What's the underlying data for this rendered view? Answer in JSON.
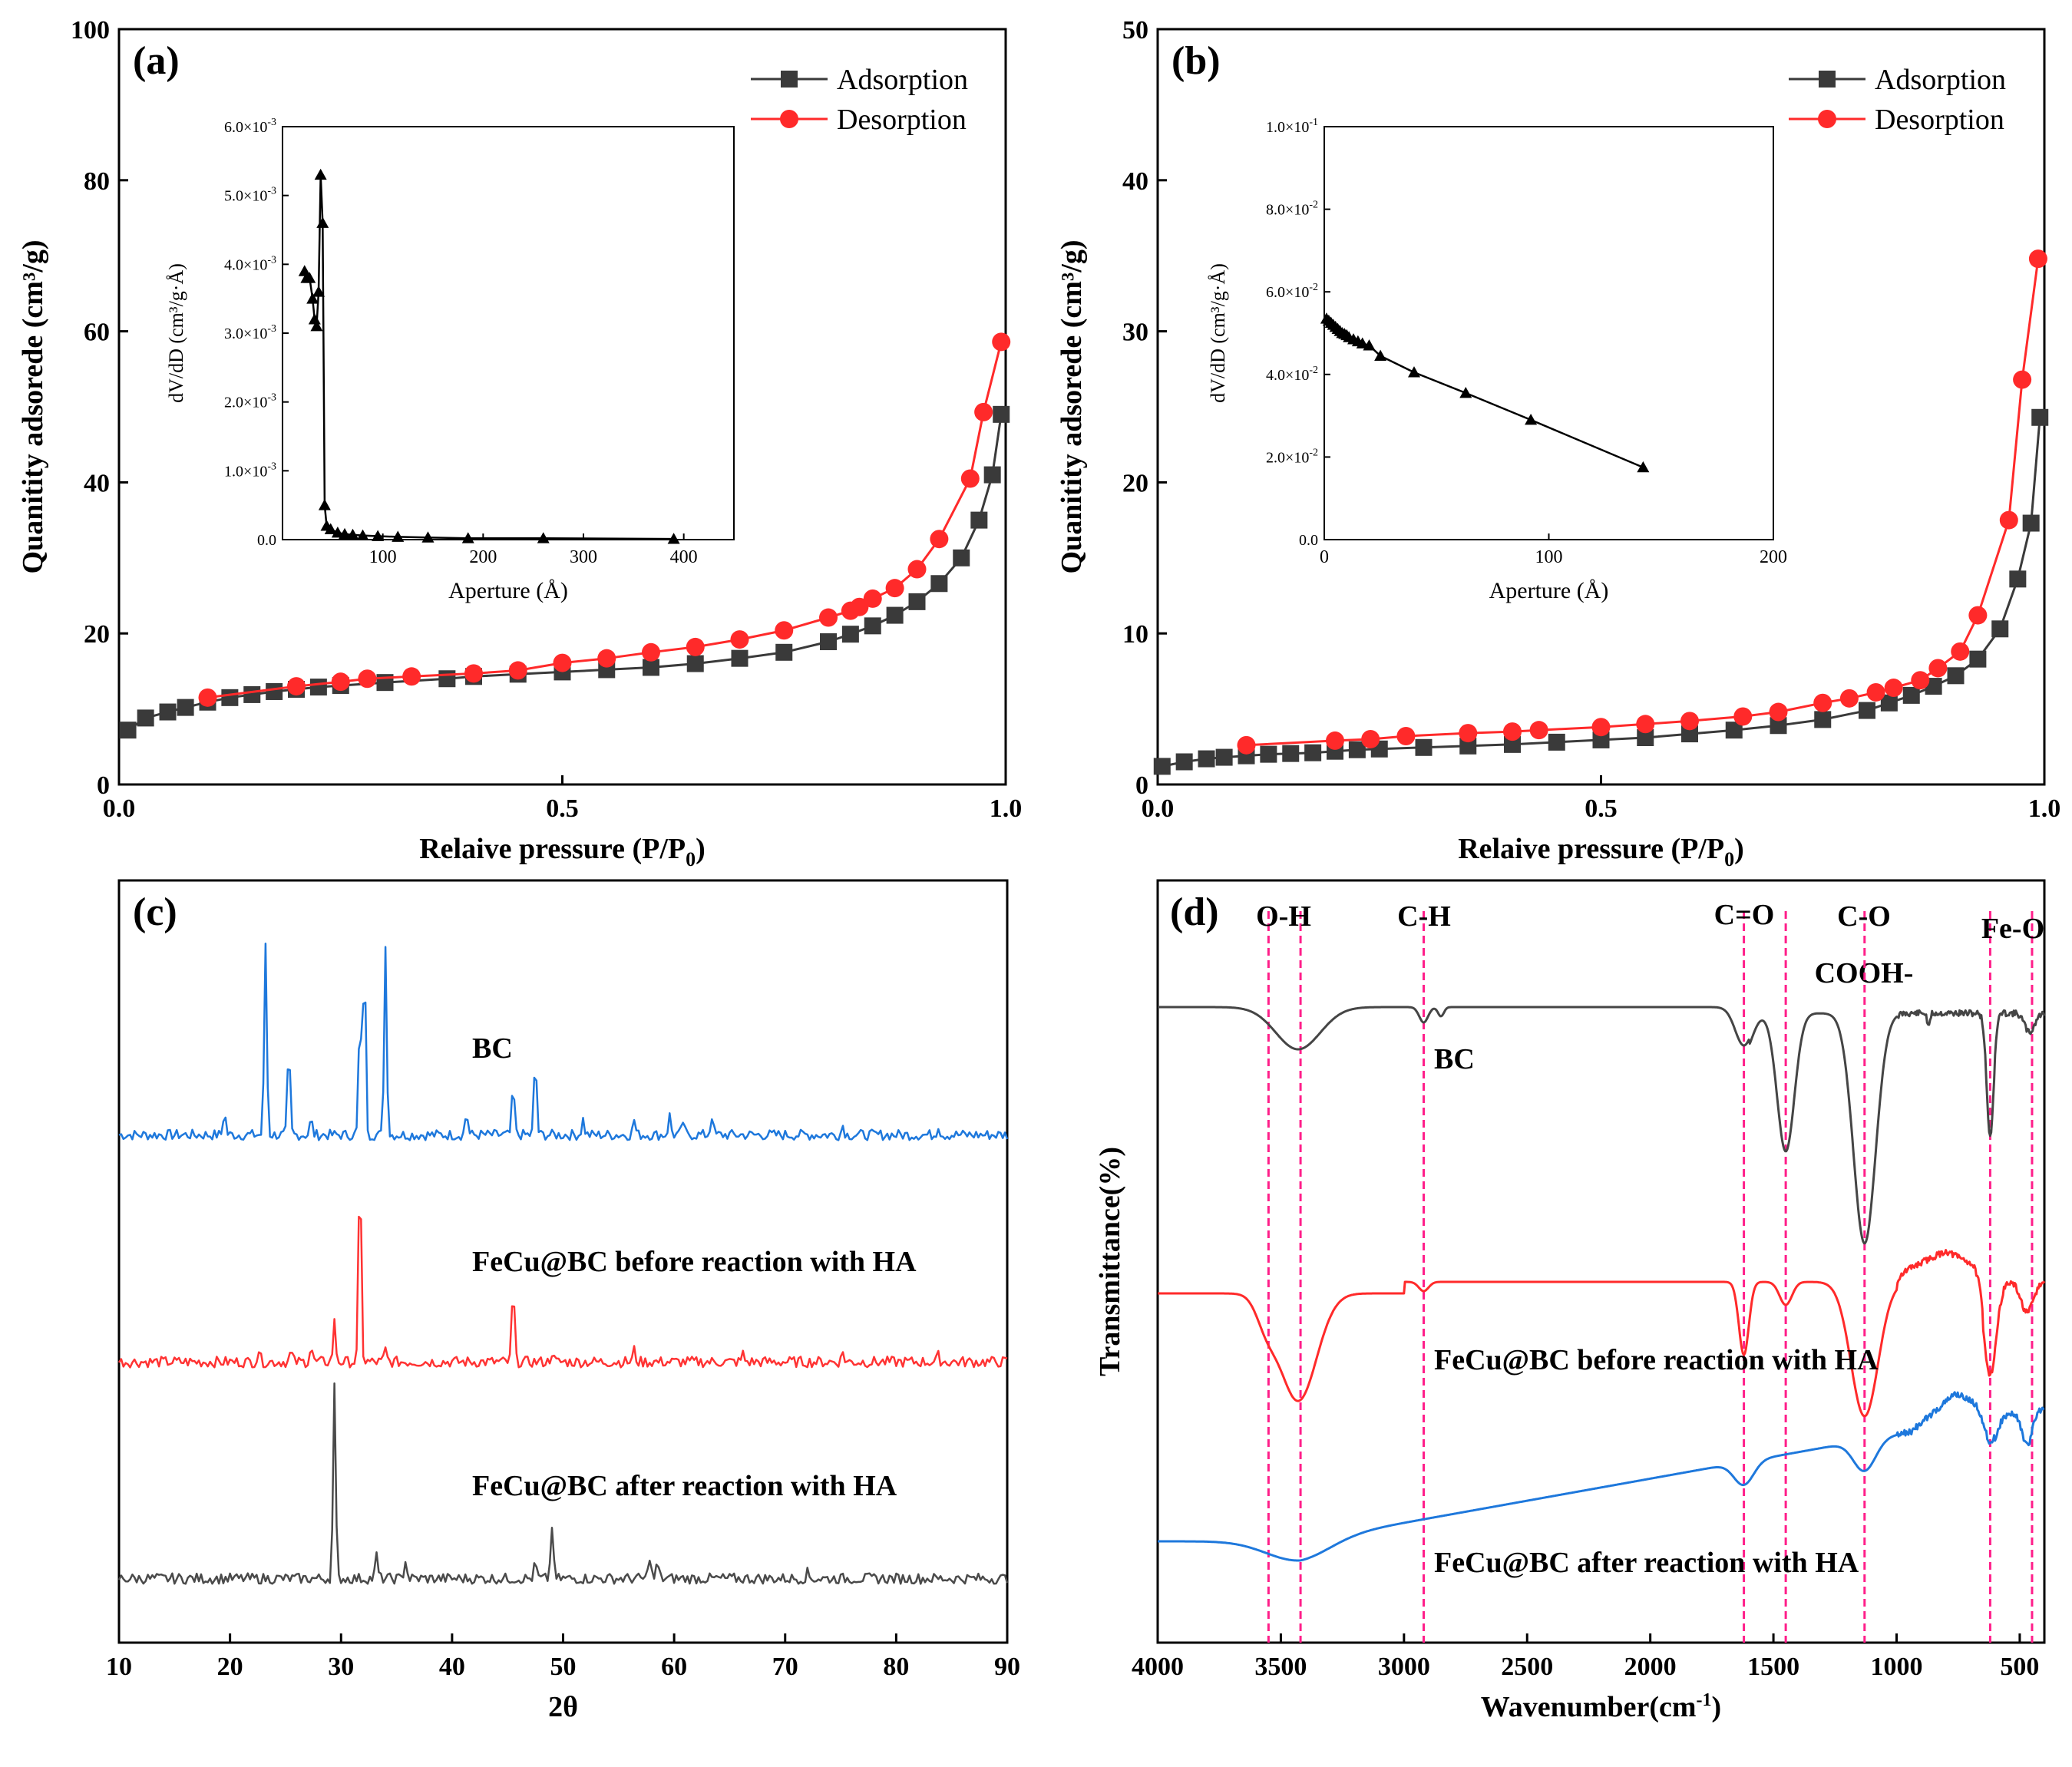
{
  "chart_data": [
    {
      "type": "line",
      "panel_label": "(a)",
      "xlabel": "Relaive pressure (P/P",
      "xlabel_sub": "0",
      "xlabel_close": ")",
      "ylabel": "Quanitity adsorede (cm³/g)",
      "xlim": [
        0,
        1.0
      ],
      "ylim": [
        0,
        100
      ],
      "xticks": [
        "0.0",
        "0.5",
        "1.0"
      ],
      "yticks": [
        "0",
        "20",
        "40",
        "60",
        "80",
        "100"
      ],
      "legend_position": "top-right",
      "series": [
        {
          "name": "Adsorption",
          "marker": "square",
          "color": "#3a3a3a",
          "x": [
            0.01,
            0.03,
            0.055,
            0.075,
            0.1,
            0.125,
            0.15,
            0.175,
            0.2,
            0.225,
            0.25,
            0.3,
            0.37,
            0.4,
            0.45,
            0.5,
            0.55,
            0.6,
            0.65,
            0.7,
            0.75,
            0.8,
            0.825,
            0.85,
            0.875,
            0.9,
            0.925,
            0.95,
            0.97,
            0.985,
            0.995
          ],
          "y": [
            7.2,
            8.8,
            9.6,
            10.2,
            10.9,
            11.5,
            11.9,
            12.3,
            12.6,
            12.9,
            13.1,
            13.5,
            14.0,
            14.3,
            14.6,
            14.9,
            15.2,
            15.5,
            16.0,
            16.7,
            17.5,
            18.9,
            19.9,
            21.0,
            22.4,
            24.2,
            26.6,
            30.0,
            35.0,
            41.0,
            49.0
          ]
        },
        {
          "name": "Desorption",
          "marker": "circle",
          "color": "#ff2a2a",
          "x": [
            0.1,
            0.2,
            0.25,
            0.28,
            0.33,
            0.4,
            0.45,
            0.5,
            0.55,
            0.6,
            0.65,
            0.7,
            0.75,
            0.8,
            0.825,
            0.835,
            0.85,
            0.875,
            0.9,
            0.925,
            0.96,
            0.975,
            0.995
          ],
          "y": [
            11.5,
            13.0,
            13.6,
            14.0,
            14.3,
            14.7,
            15.1,
            16.1,
            16.7,
            17.5,
            18.2,
            19.2,
            20.4,
            22.1,
            23.0,
            23.5,
            24.6,
            26.0,
            28.5,
            32.5,
            40.5,
            49.3,
            58.6
          ]
        }
      ],
      "inset": {
        "xlabel": "Aperture (Å)",
        "ylabel": "dV/dD  (cm³/g·Å)",
        "xlim": [
          0,
          450
        ],
        "ylim": [
          0,
          0.006
        ],
        "xticks": [
          "100",
          "200",
          "300",
          "400"
        ],
        "yticks_mantissa": [
          "0.0",
          "1.0×10",
          "2.0×10",
          "3.0×10",
          "4.0×10",
          "5.0×10",
          "6.0×10"
        ],
        "ytick_exponent": "-3",
        "series": {
          "name": "dV/dD",
          "marker": "triangle",
          "x": [
            22,
            24,
            27,
            30,
            32,
            34,
            36,
            38,
            40,
            42,
            44,
            48,
            55,
            62,
            70,
            80,
            95,
            115,
            145,
            185,
            260,
            390
          ],
          "y": [
            0.0039,
            0.0038,
            0.0038,
            0.0035,
            0.0032,
            0.0031,
            0.0036,
            0.0053,
            0.0046,
            0.0005,
            0.0002,
            0.00015,
            0.0001,
            8e-05,
            7e-05,
            6e-05,
            5e-05,
            4e-05,
            3e-05,
            2e-05,
            2e-05,
            1e-05
          ]
        }
      }
    },
    {
      "type": "line",
      "panel_label": "(b)",
      "xlabel": "Relaive pressure (P/P",
      "xlabel_sub": "0",
      "xlabel_close": ")",
      "ylabel": "Quanitity adsorede (cm³/g)",
      "xlim": [
        0,
        1.0
      ],
      "ylim": [
        0,
        50
      ],
      "xticks": [
        "0.0",
        "0.5",
        "1.0"
      ],
      "yticks": [
        "0",
        "10",
        "20",
        "30",
        "40",
        "50"
      ],
      "legend_position": "top-right",
      "series": [
        {
          "name": "Adsorption",
          "marker": "square",
          "color": "#3a3a3a",
          "x": [
            0.005,
            0.03,
            0.055,
            0.075,
            0.1,
            0.125,
            0.15,
            0.175,
            0.2,
            0.225,
            0.25,
            0.3,
            0.35,
            0.4,
            0.45,
            0.5,
            0.55,
            0.6,
            0.65,
            0.7,
            0.75,
            0.8,
            0.825,
            0.85,
            0.875,
            0.9,
            0.925,
            0.95,
            0.97,
            0.985,
            0.995
          ],
          "y": [
            1.2,
            1.5,
            1.7,
            1.8,
            1.9,
            2.0,
            2.05,
            2.1,
            2.2,
            2.3,
            2.35,
            2.45,
            2.55,
            2.65,
            2.8,
            2.95,
            3.1,
            3.35,
            3.6,
            3.9,
            4.3,
            4.9,
            5.4,
            5.9,
            6.5,
            7.2,
            8.3,
            10.3,
            13.6,
            17.3,
            24.3
          ]
        },
        {
          "name": "Desorption",
          "marker": "circle",
          "color": "#ff2a2a",
          "x": [
            0.1,
            0.2,
            0.24,
            0.28,
            0.35,
            0.4,
            0.43,
            0.5,
            0.55,
            0.6,
            0.66,
            0.7,
            0.75,
            0.78,
            0.81,
            0.83,
            0.86,
            0.88,
            0.905,
            0.925,
            0.96,
            0.975,
            0.993
          ],
          "y": [
            2.6,
            2.9,
            3.0,
            3.2,
            3.4,
            3.5,
            3.6,
            3.8,
            4.0,
            4.2,
            4.5,
            4.8,
            5.4,
            5.7,
            6.1,
            6.4,
            6.9,
            7.7,
            8.8,
            11.2,
            17.5,
            26.8,
            34.8
          ]
        }
      ],
      "inset": {
        "xlabel": "Aperture (Å)",
        "ylabel": "dV/dD  (cm³/g·Å)",
        "xlim": [
          0,
          200
        ],
        "ylim": [
          0,
          0.1
        ],
        "xticks": [
          "0",
          "100",
          "200"
        ],
        "yticks_mantissa": [
          "0.0",
          "2.0×10",
          "4.0×10",
          "6.0×10",
          "8.0×10",
          "1.0×10"
        ],
        "ytick_exponents": [
          "",
          "-2",
          "-2",
          "-2",
          "-2",
          "-1"
        ],
        "series": {
          "name": "dV/dD",
          "marker": "triangle",
          "x": [
            1,
            2,
            3,
            4,
            5,
            6,
            7,
            8,
            9,
            10,
            11,
            13,
            15,
            17,
            20,
            25,
            40,
            63,
            92,
            142
          ],
          "y": [
            0.0535,
            0.053,
            0.0525,
            0.052,
            0.0515,
            0.051,
            0.0505,
            0.05,
            0.0498,
            0.0495,
            0.049,
            0.0485,
            0.048,
            0.0475,
            0.047,
            0.0445,
            0.0405,
            0.0355,
            0.029,
            0.0175
          ]
        }
      }
    },
    {
      "type": "line",
      "panel_label": "(c)",
      "xlabel": "2θ",
      "xlim": [
        10,
        90
      ],
      "xticks": [
        "10",
        "20",
        "30",
        "40",
        "50",
        "60",
        "70",
        "80",
        "90"
      ],
      "series": [
        {
          "name": "BC",
          "color": "#1e78dc",
          "peaks": [
            [
              19.5,
              0.12
            ],
            [
              23.2,
              1.0
            ],
            [
              25.3,
              0.45
            ],
            [
              27.3,
              0.08
            ],
            [
              31.7,
              0.62
            ],
            [
              32.1,
              0.95
            ],
            [
              34.0,
              0.98
            ],
            [
              41.3,
              0.12
            ],
            [
              45.5,
              0.25
            ],
            [
              47.5,
              0.4
            ],
            [
              51.8,
              0.08
            ],
            [
              56.4,
              0.08
            ],
            [
              59.6,
              0.1
            ],
            [
              60.8,
              0.07
            ],
            [
              63.4,
              0.1
            ],
            [
              75.2,
              0.05
            ],
            [
              83.8,
              0.05
            ]
          ]
        },
        {
          "name": "FeCu@BC  before  reaction with HA",
          "color": "#ff3333",
          "peaks": [
            [
              22.6,
              0.06
            ],
            [
              25.5,
              0.05
            ],
            [
              27.3,
              0.08
            ],
            [
              29.4,
              0.2
            ],
            [
              31.7,
              1.0
            ],
            [
              34.0,
              0.06
            ],
            [
              45.5,
              0.38
            ],
            [
              49.0,
              0.05
            ],
            [
              56.4,
              0.06
            ],
            [
              66.2,
              0.04
            ],
            [
              75.2,
              0.05
            ],
            [
              83.8,
              0.03
            ]
          ]
        },
        {
          "name": "FeCu@BC  after reaction with HA",
          "color": "#4a4a4a",
          "peaks": [
            [
              29.4,
              1.0
            ],
            [
              33.2,
              0.12
            ],
            [
              35.8,
              0.1
            ],
            [
              47.5,
              0.08
            ],
            [
              49.0,
              0.28
            ],
            [
              57.8,
              0.12
            ],
            [
              58.5,
              0.08
            ],
            [
              72.0,
              0.03
            ]
          ]
        }
      ]
    },
    {
      "type": "line",
      "panel_label": "(d)",
      "xlabel": "Wavenumber(cm",
      "xlabel_sup": "-1",
      "xlabel_close": ")",
      "ylabel": "Transmittance(%)",
      "xlim": [
        4000,
        400
      ],
      "xticks": [
        "4000",
        "3500",
        "3000",
        "2500",
        "2000",
        "1500",
        "1000",
        "500"
      ],
      "annotations": [
        {
          "label": "O-H",
          "wavenumbers": [
            3550,
            3420
          ]
        },
        {
          "label": "C-H",
          "wavenumbers": [
            2920
          ]
        },
        {
          "label": "C=O",
          "wavenumbers": [
            1620
          ]
        },
        {
          "label": "COOH-",
          "wavenumbers": [
            1450
          ]
        },
        {
          "label": "C-O",
          "wavenumbers": [
            1130
          ]
        },
        {
          "label": "Fe-O",
          "wavenumbers": [
            620,
            450
          ]
        }
      ],
      "series": [
        {
          "name": "BC",
          "color": "#454545"
        },
        {
          "name": "FeCu@BC  before  reaction with HA",
          "color": "#ff2a2a"
        },
        {
          "name": "FeCu@BC  after reaction with HA",
          "color": "#1e78dc"
        }
      ]
    }
  ]
}
